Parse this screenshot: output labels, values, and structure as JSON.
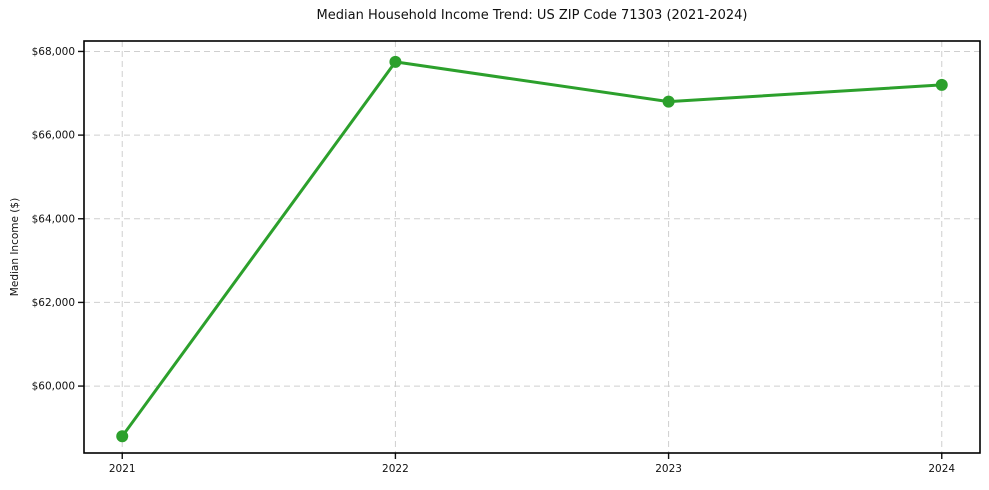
{
  "chart_data": {
    "type": "line",
    "title": "Median Household Income Trend: US ZIP Code 71303 (2021-2024)",
    "xlabel": "",
    "ylabel": "Median Income ($)",
    "x": [
      2021,
      2022,
      2023,
      2024
    ],
    "x_labels": [
      "2021",
      "2022",
      "2023",
      "2024"
    ],
    "series": [
      {
        "name": "Median household income",
        "values": [
          58800,
          67750,
          66800,
          67200
        ]
      }
    ],
    "yticks": [
      {
        "value": 60000,
        "label": "$60,000"
      },
      {
        "value": 62000,
        "label": "$62,000"
      },
      {
        "value": 64000,
        "label": "$64,000"
      },
      {
        "value": 66000,
        "label": "$66,000"
      },
      {
        "value": 68000,
        "label": "$68,000"
      }
    ],
    "xlim": [
      2020.86,
      2024.14
    ],
    "ylim": [
      58400,
      68250
    ],
    "grid": "dashed-both-axes",
    "legend": "none",
    "colors": {
      "line": "#2ca02c",
      "marker": "#2ca02c",
      "grid": "#cfcfcf",
      "frame": "#000000",
      "text": "#111111",
      "background": "#ffffff"
    },
    "marker_style": "circle",
    "marker_radius": 6
  }
}
